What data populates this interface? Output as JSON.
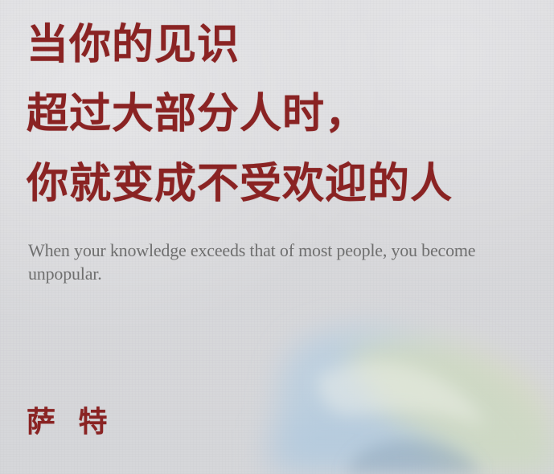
{
  "quote_zh": {
    "line1": "当你的见识",
    "line2": "超过大部分人时，",
    "line3": "你就变成不受欢迎的人"
  },
  "quote_en": "When your knowledge exceeds that of most people, you become unpopular.",
  "author": "萨 特",
  "colors": {
    "text_red": "#8a2323",
    "text_gray": "#6f6f6f",
    "paper": "#d9d9dc",
    "watercolor_blue": "#b8cfe0",
    "watercolor_yellow": "#dde0ae"
  }
}
